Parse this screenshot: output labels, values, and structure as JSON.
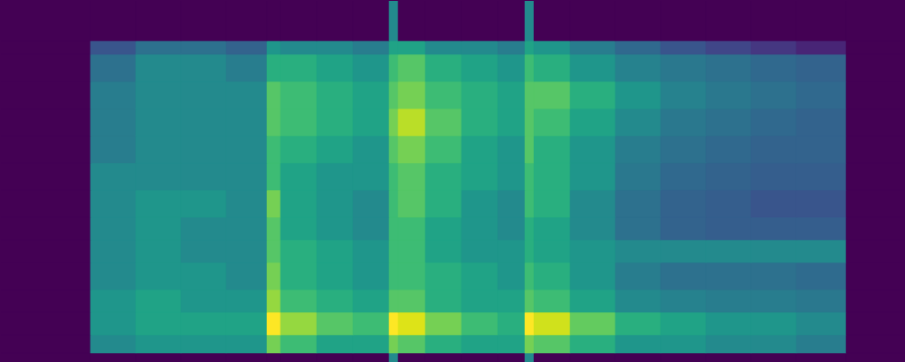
{
  "chart_data": {
    "type": "heatmap",
    "color": "viridis",
    "tick_labels": false,
    "xlim": [
      0,
      100
    ],
    "ylim": [
      0,
      40
    ],
    "x": [
      0,
      10,
      15,
      20,
      25,
      29.5,
      31,
      35,
      39,
      43,
      44,
      47,
      51,
      55,
      58,
      59,
      63,
      68,
      73,
      78,
      83,
      88,
      93.5,
      100
    ],
    "y": [
      0,
      1,
      3,
      5.5,
      8,
      11,
      13.5,
      16,
      19,
      22,
      25,
      28,
      31,
      34,
      35.5,
      40
    ],
    "values": [
      [
        0,
        0,
        0,
        0,
        0,
        0,
        0,
        0,
        0,
        0.45,
        0,
        0,
        0,
        0,
        0.45,
        0,
        0,
        0,
        0,
        0,
        0,
        0,
        0
      ],
      [
        0,
        0.45,
        0.5,
        0.5,
        0.5,
        0.75,
        0.65,
        0.55,
        0.55,
        0.75,
        0.7,
        0.6,
        0.55,
        0.55,
        0.75,
        0.7,
        0.6,
        0.5,
        0.5,
        0.45,
        0.45,
        0.4,
        0
      ],
      [
        0,
        0.5,
        0.55,
        0.55,
        0.55,
        0.95,
        0.8,
        0.7,
        0.65,
        0.95,
        0.9,
        0.75,
        0.65,
        0.6,
        0.95,
        0.88,
        0.72,
        0.6,
        0.55,
        0.5,
        0.5,
        0.45,
        0
      ],
      [
        0,
        0.5,
        0.55,
        0.5,
        0.5,
        0.8,
        0.65,
        0.6,
        0.55,
        0.7,
        0.7,
        0.6,
        0.55,
        0.55,
        0.7,
        0.65,
        0.55,
        0.45,
        0.42,
        0.4,
        0.4,
        0.38,
        0
      ],
      [
        0,
        0.45,
        0.5,
        0.5,
        0.45,
        0.75,
        0.6,
        0.55,
        0.5,
        0.65,
        0.65,
        0.6,
        0.55,
        0.5,
        0.65,
        0.6,
        0.5,
        0.4,
        0.35,
        0.35,
        0.35,
        0.33,
        0
      ],
      [
        0,
        0.45,
        0.5,
        0.45,
        0.45,
        0.7,
        0.6,
        0.55,
        0.5,
        0.65,
        0.65,
        0.55,
        0.5,
        0.5,
        0.6,
        0.55,
        0.5,
        0.45,
        0.45,
        0.45,
        0.45,
        0.45,
        0
      ],
      [
        0,
        0.45,
        0.5,
        0.45,
        0.45,
        0.7,
        0.55,
        0.5,
        0.45,
        0.65,
        0.65,
        0.55,
        0.5,
        0.45,
        0.6,
        0.55,
        0.45,
        0.35,
        0.3,
        0.28,
        0.28,
        0.28,
        0
      ],
      [
        0,
        0.45,
        0.5,
        0.5,
        0.45,
        0.75,
        0.55,
        0.5,
        0.45,
        0.65,
        0.7,
        0.6,
        0.5,
        0.45,
        0.65,
        0.6,
        0.45,
        0.35,
        0.3,
        0.28,
        0.25,
        0.25,
        0
      ],
      [
        0,
        0.45,
        0.45,
        0.45,
        0.45,
        0.65,
        0.55,
        0.5,
        0.5,
        0.65,
        0.7,
        0.6,
        0.55,
        0.5,
        0.65,
        0.6,
        0.5,
        0.38,
        0.32,
        0.3,
        0.28,
        0.28,
        0
      ],
      [
        0,
        0.4,
        0.45,
        0.45,
        0.45,
        0.65,
        0.6,
        0.55,
        0.5,
        0.7,
        0.75,
        0.65,
        0.55,
        0.5,
        0.7,
        0.6,
        0.5,
        0.4,
        0.35,
        0.32,
        0.3,
        0.3,
        0
      ],
      [
        0,
        0.4,
        0.45,
        0.45,
        0.45,
        0.7,
        0.65,
        0.6,
        0.55,
        0.75,
        0.85,
        0.7,
        0.6,
        0.55,
        0.7,
        0.65,
        0.55,
        0.45,
        0.38,
        0.35,
        0.32,
        0.3,
        0
      ],
      [
        0,
        0.4,
        0.45,
        0.45,
        0.45,
        0.7,
        0.65,
        0.6,
        0.55,
        0.7,
        0.75,
        0.65,
        0.6,
        0.55,
        0.7,
        0.7,
        0.6,
        0.5,
        0.42,
        0.38,
        0.35,
        0.32,
        0
      ],
      [
        0,
        0.35,
        0.45,
        0.45,
        0.4,
        0.6,
        0.6,
        0.55,
        0.5,
        0.65,
        0.7,
        0.6,
        0.55,
        0.5,
        0.65,
        0.6,
        0.5,
        0.42,
        0.38,
        0.35,
        0.32,
        0.3,
        0
      ],
      [
        0,
        0.25,
        0.35,
        0.35,
        0.3,
        0.5,
        0.45,
        0.45,
        0.4,
        0.55,
        0.55,
        0.45,
        0.45,
        0.4,
        0.55,
        0.5,
        0.4,
        0.32,
        0.25,
        0.2,
        0.15,
        0.1,
        0
      ],
      [
        0,
        0,
        0,
        0,
        0,
        0,
        0,
        0,
        0,
        0.45,
        0,
        0,
        0,
        0,
        0.45,
        0,
        0,
        0,
        0,
        0,
        0,
        0,
        0
      ]
    ]
  }
}
